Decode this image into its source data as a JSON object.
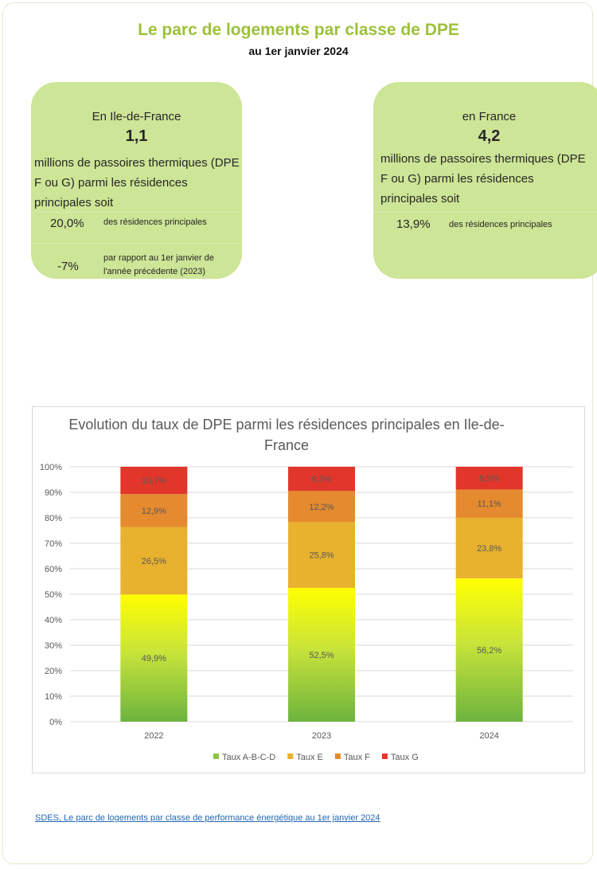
{
  "header": {
    "title": "Le parc de logements par classe de DPE",
    "subtitle": "au 1er janvier 2024"
  },
  "card_idf": {
    "region": "En Ile-de-France",
    "value": "1,1",
    "description": "millions de passoires thermiques (DPE F ou G) parmi les résidences principales soit",
    "share_value": "20,0%",
    "share_label": "des résidences principales",
    "change_value": "-7%",
    "change_label": "par rapport au 1er janvier de l'année précédente (2023)"
  },
  "card_fr": {
    "region": "en France",
    "value": "4,2",
    "description": "millions de passoires thermiques (DPE F ou G) parmi les résidences principales soit",
    "share_value": "13,9%",
    "share_label": "des résidences principales"
  },
  "chart_data": {
    "type": "bar",
    "stacked": true,
    "title": "Evolution du taux de DPE parmi les résidences principales en Ile-de-France",
    "categories": [
      "2022",
      "2023",
      "2024"
    ],
    "series": [
      {
        "name": "Taux A-B-C-D",
        "values": [
          49.9,
          52.5,
          56.2
        ],
        "labels": [
          "49,9%",
          "52,5%",
          "56,2%"
        ],
        "color": "#8dc63f"
      },
      {
        "name": "Taux E",
        "values": [
          26.5,
          25.8,
          23.8
        ],
        "labels": [
          "26,5%",
          "25,8%",
          "23,8%"
        ],
        "color": "#e8b12e"
      },
      {
        "name": "Taux F",
        "values": [
          12.9,
          12.2,
          11.1
        ],
        "labels": [
          "12,9%",
          "12,2%",
          "11,1%"
        ],
        "color": "#e58a2f"
      },
      {
        "name": "Taux G",
        "values": [
          10.7,
          9.5,
          8.9
        ],
        "labels": [
          "10,7%",
          "9,5%",
          "8,9%"
        ],
        "color": "#e2362a"
      }
    ],
    "yticks": [
      "0%",
      "10%",
      "20%",
      "30%",
      "40%",
      "50%",
      "60%",
      "70%",
      "80%",
      "90%",
      "100%"
    ],
    "ylim": [
      0,
      100
    ],
    "grid": true,
    "legend": "bottom"
  },
  "footer": {
    "source": "SDES, Le parc de logements par classe de performance énergétique au 1er janvier 2024"
  }
}
